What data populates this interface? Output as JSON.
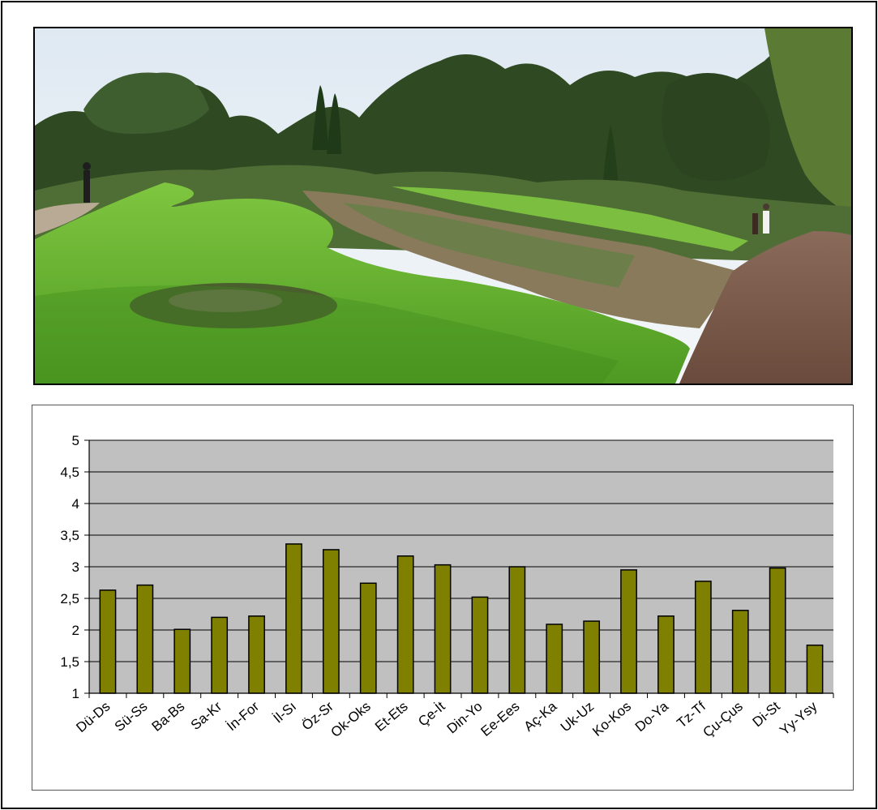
{
  "colors": {
    "bar_fill": "#808000",
    "bar_stroke": "#000000",
    "plot_bg": "#c0c0c0",
    "grid": "#000000"
  },
  "photo": {
    "subject": "garden-photo"
  },
  "chart_data": {
    "type": "bar",
    "title": "",
    "xlabel": "",
    "ylabel": "",
    "categories": [
      "Dü-Ds",
      "Sü-Ss",
      "Ba-Bs",
      "Sa-Kr",
      "İn-For",
      "İl-Sı",
      "Öz-Sr",
      "Ok-Oks",
      "Et-Ets",
      "Çe-İt",
      "Din-Yo",
      "Ee-Ees",
      "Aç-Ka",
      "Uk-Uz",
      "Ko-Kos",
      "Do-Ya",
      "Tz-Tf",
      "Çu-Çus",
      "Di-St",
      "Yy-Ysy"
    ],
    "values": [
      2.63,
      2.71,
      2.01,
      2.2,
      2.22,
      3.36,
      3.27,
      2.74,
      3.17,
      3.03,
      2.52,
      3.0,
      2.09,
      2.14,
      2.95,
      2.22,
      2.77,
      2.31,
      2.98,
      1.76
    ],
    "ylim": [
      1,
      5
    ],
    "yticks": [
      "1",
      "1,5",
      "2",
      "2,5",
      "3",
      "3,5",
      "4",
      "4,5",
      "5"
    ],
    "grid": true,
    "legend": "none"
  }
}
